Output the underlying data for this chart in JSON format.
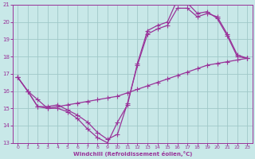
{
  "xlabel": "Windchill (Refroidissement éolien,°C)",
  "xlim": [
    -0.5,
    23.5
  ],
  "ylim": [
    13,
    21
  ],
  "yticks": [
    13,
    14,
    15,
    16,
    17,
    18,
    19,
    20,
    21
  ],
  "xticks": [
    0,
    1,
    2,
    3,
    4,
    5,
    6,
    7,
    8,
    9,
    10,
    11,
    12,
    13,
    14,
    15,
    16,
    17,
    18,
    19,
    20,
    21,
    22,
    23
  ],
  "bg_color": "#c8e8e8",
  "grid_color": "#a0c8c8",
  "line_color": "#993399",
  "curve1_x": [
    0,
    1,
    2,
    3,
    4,
    5,
    6,
    7,
    8,
    9,
    10,
    11,
    12,
    13,
    14,
    15,
    16,
    17,
    18,
    19,
    20,
    21,
    22,
    23
  ],
  "curve1_y": [
    16.8,
    16.0,
    15.1,
    15.0,
    15.0,
    14.8,
    14.4,
    13.8,
    13.3,
    13.0,
    14.2,
    15.2,
    17.6,
    19.5,
    19.8,
    20.0,
    21.3,
    21.1,
    20.5,
    20.6,
    20.2,
    19.2,
    18.0,
    17.9
  ],
  "curve2_x": [
    0,
    1,
    2,
    3,
    4,
    5,
    6,
    7,
    8,
    9,
    10,
    11,
    12,
    13,
    14,
    15,
    16,
    17,
    18,
    19,
    20,
    21,
    22,
    23
  ],
  "curve2_y": [
    16.8,
    16.0,
    15.1,
    15.1,
    15.2,
    14.9,
    14.6,
    14.2,
    13.6,
    13.2,
    13.5,
    15.3,
    17.5,
    19.3,
    19.6,
    19.8,
    20.8,
    20.8,
    20.3,
    20.5,
    20.3,
    19.3,
    18.1,
    17.9
  ],
  "curve3_x": [
    0,
    1,
    2,
    3,
    4,
    5,
    6,
    7,
    8,
    9,
    10,
    11,
    12,
    13,
    14,
    15,
    16,
    17,
    18,
    19,
    20,
    21,
    22,
    23
  ],
  "curve3_y": [
    16.8,
    16.0,
    15.5,
    15.0,
    15.1,
    15.2,
    15.3,
    15.4,
    15.5,
    15.6,
    15.7,
    15.9,
    16.1,
    16.3,
    16.5,
    16.7,
    16.9,
    17.1,
    17.3,
    17.5,
    17.6,
    17.7,
    17.8,
    17.9
  ],
  "markersize": 2.5,
  "linewidth": 0.9
}
